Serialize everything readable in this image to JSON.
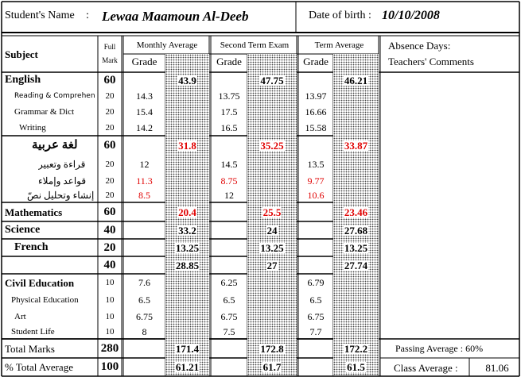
{
  "header": {
    "name_label": "Student's Name",
    "name_colon": ":",
    "student_name": "Lewaa Maamoun Al-Deeb",
    "dob_label": "Date of birth :",
    "dob": "10/10/2008"
  },
  "columns": {
    "subject": "Subject",
    "full_mark_1": "Full",
    "full_mark_2": "Mark",
    "monthly": "Monthly Average",
    "second_term": "Second Term Exam",
    "term_avg": "Term Average",
    "grade": "Grade",
    "average": "Average",
    "absence": "Absence Days:",
    "comments": "Teachers' Comments"
  },
  "rows": [
    {
      "subject": "English",
      "full": "60",
      "m_grade": "",
      "m_avg": "43.9",
      "s_grade": "",
      "s_avg": "47.75",
      "t_grade": "",
      "t_avg": "46.21"
    },
    {
      "subject": "Reading  &  Comprehen",
      "full": "20",
      "m_grade": "14.3",
      "m_avg": "",
      "s_grade": "13.75",
      "s_avg": "",
      "t_grade": "13.97",
      "t_avg": ""
    },
    {
      "subject": "Grammar & Dict",
      "full": "20",
      "m_grade": "15.4",
      "m_avg": "",
      "s_grade": "17.5",
      "s_avg": "",
      "t_grade": "16.66",
      "t_avg": ""
    },
    {
      "subject": "Writing",
      "full": "20",
      "m_grade": "14.2",
      "m_avg": "",
      "s_grade": "16.5",
      "s_avg": "",
      "t_grade": "15.58",
      "t_avg": ""
    },
    {
      "subject": "لغة عربية",
      "full": "60",
      "m_grade": "",
      "m_avg": "31.8",
      "s_grade": "",
      "s_avg": "35.25",
      "t_grade": "",
      "t_avg": "33.87"
    },
    {
      "subject": "قراءة وتعبير",
      "full": "20",
      "m_grade": "12",
      "m_avg": "",
      "s_grade": "14.5",
      "s_avg": "",
      "t_grade": "13.5",
      "t_avg": ""
    },
    {
      "subject": "قواعد وإملاء",
      "full": "20",
      "m_grade": "11.3",
      "m_avg": "",
      "s_grade": "8.75",
      "s_avg": "",
      "t_grade": "9.77",
      "t_avg": ""
    },
    {
      "subject": "إنشاء وتحليل نصّ",
      "full": "20",
      "m_grade": "8.5",
      "m_avg": "",
      "s_grade": "12",
      "s_avg": "",
      "t_grade": "10.6",
      "t_avg": ""
    },
    {
      "subject": "Mathematics",
      "full": "60",
      "m_grade": "",
      "m_avg": "20.4",
      "s_grade": "",
      "s_avg": "25.5",
      "t_grade": "",
      "t_avg": "23.46"
    },
    {
      "subject": "Science",
      "full": "40",
      "m_grade": "",
      "m_avg": "33.2",
      "s_grade": "",
      "s_avg": "24",
      "t_grade": "",
      "t_avg": "27.68"
    },
    {
      "subject": "French",
      "full": "20",
      "m_grade": "",
      "m_avg": "13.25",
      "s_grade": "",
      "s_avg": "13.25",
      "t_grade": "",
      "t_avg": "13.25"
    },
    {
      "subject": "",
      "full": "40",
      "m_grade": "",
      "m_avg": "28.85",
      "s_grade": "",
      "s_avg": "27",
      "t_grade": "",
      "t_avg": "27.74"
    },
    {
      "subject": "Civil Education",
      "full": "10",
      "m_grade": "7.6",
      "m_avg": "",
      "s_grade": "6.25",
      "s_avg": "",
      "t_grade": "6.79",
      "t_avg": ""
    },
    {
      "subject": "Physical Education",
      "full": "10",
      "m_grade": "6.5",
      "m_avg": "",
      "s_grade": "6.5",
      "s_avg": "",
      "t_grade": "6.5",
      "t_avg": ""
    },
    {
      "subject": "Art",
      "full": "10",
      "m_grade": "6.75",
      "m_avg": "",
      "s_grade": "6.75",
      "s_avg": "",
      "t_grade": "6.75",
      "t_avg": ""
    },
    {
      "subject": "Student Life",
      "full": "10",
      "m_grade": "8",
      "m_avg": "",
      "s_grade": "7.5",
      "s_avg": "",
      "t_grade": "7.7",
      "t_avg": ""
    },
    {
      "subject": "Total Marks",
      "full": "280",
      "m_grade": "",
      "m_avg": "171.4",
      "s_grade": "",
      "s_avg": "172.8",
      "t_grade": "",
      "t_avg": "172.2"
    },
    {
      "subject": "% Total Average",
      "full": "100",
      "m_grade": "",
      "m_avg": "61.21",
      "s_grade": "",
      "s_avg": "61.7",
      "t_grade": "",
      "t_avg": "61.5"
    }
  ],
  "footer": {
    "passing_label": "Passing Average : 60%",
    "class_avg_label": "Class Average :",
    "class_avg_value": "81.06"
  },
  "colors": {
    "fail": "#e00000",
    "text": "#000000"
  }
}
